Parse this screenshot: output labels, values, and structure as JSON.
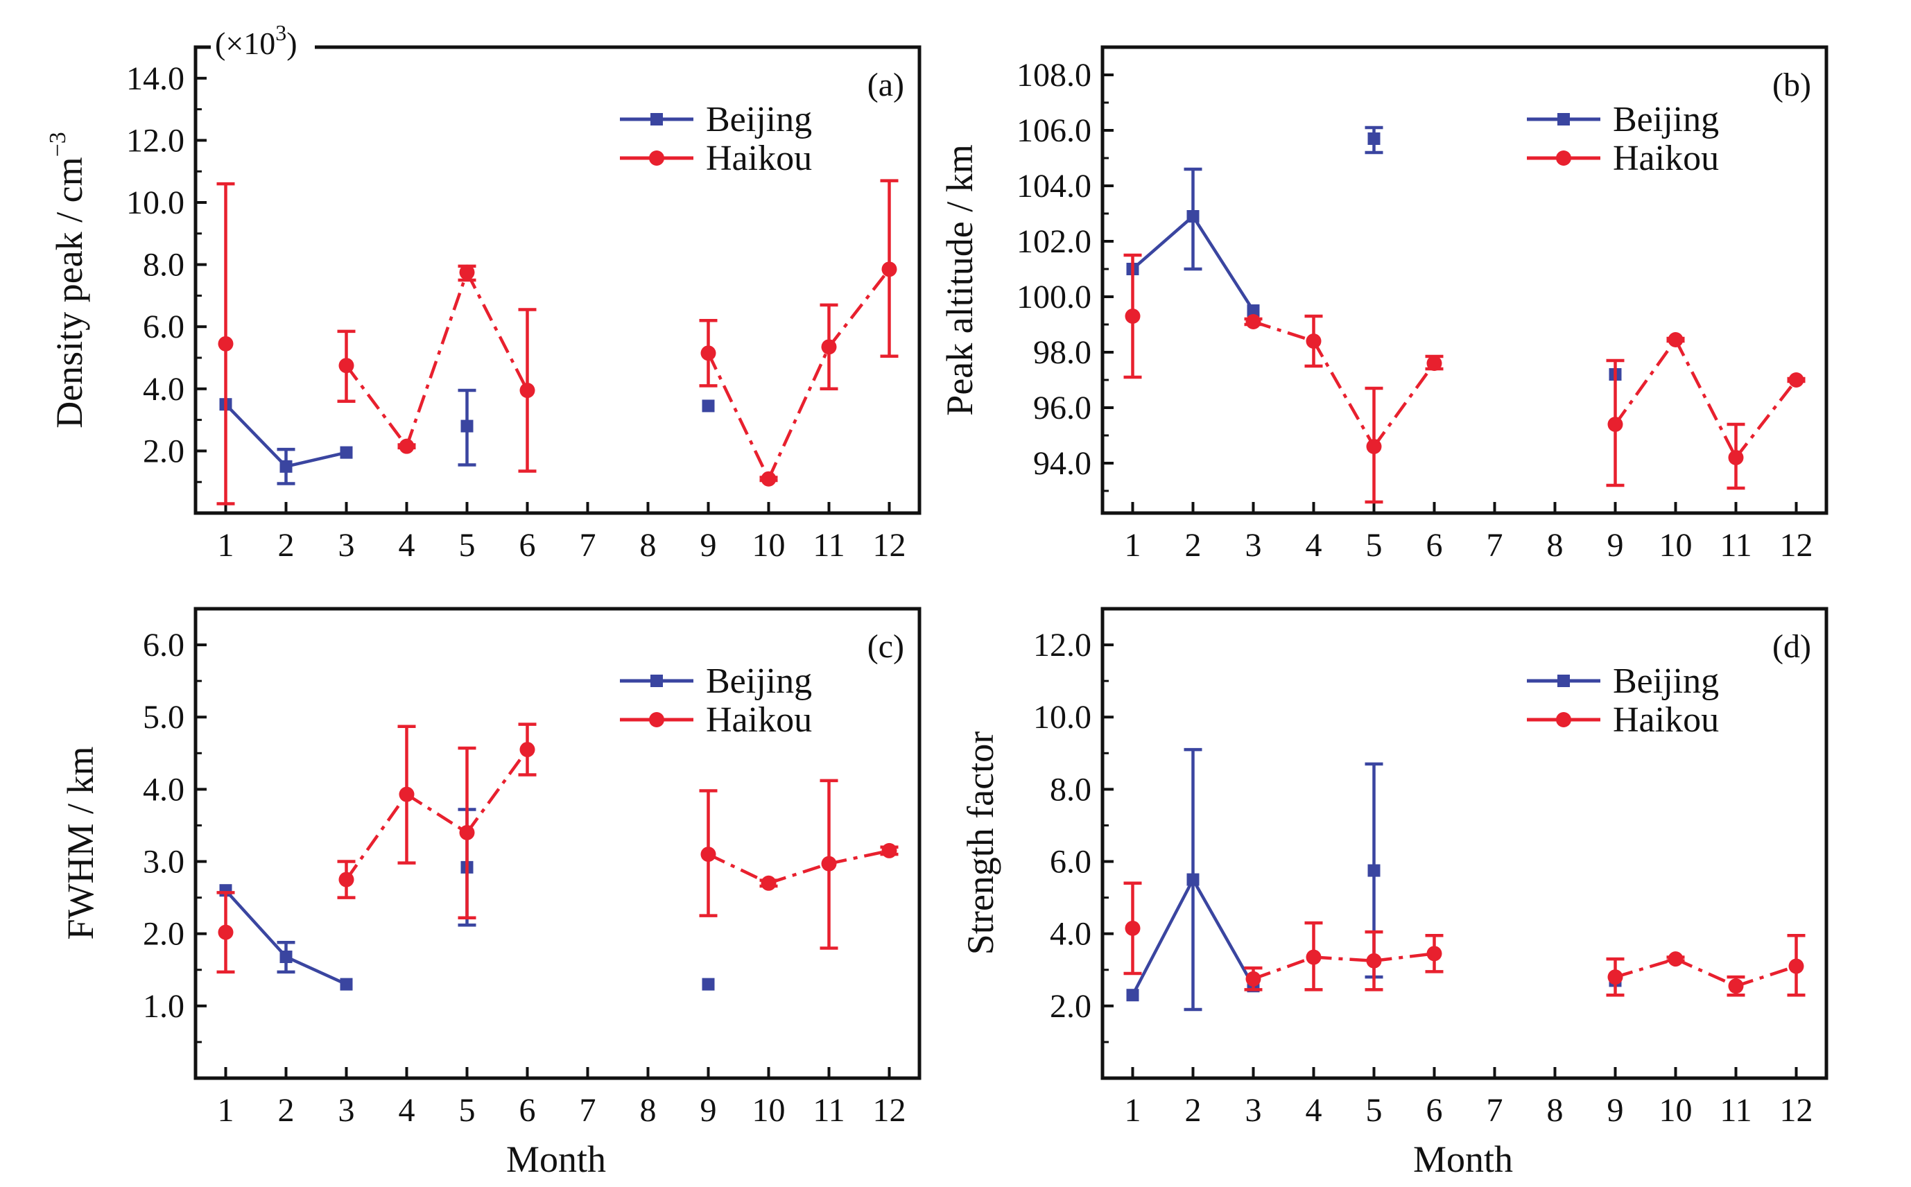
{
  "figure": {
    "x_title": "Month",
    "colors": {
      "beijing": "#3a45a0",
      "haikou": "#e8202e"
    }
  },
  "chart_data": [
    {
      "type": "line",
      "panel_label": "(a)",
      "ylabel": "Density peak / cm",
      "ylabel_sup": "−3",
      "y_multiplier": {
        "base": "(×10",
        "exp": "3",
        "close": ")"
      },
      "ylim": [
        0,
        15
      ],
      "yticks": [
        2,
        4,
        6,
        8,
        10,
        12,
        14
      ],
      "ytick_labels": [
        "2.0",
        "4.0",
        "6.0",
        "8.0",
        "10.0",
        "12.0",
        "14.0"
      ],
      "xticks": [
        1,
        2,
        3,
        4,
        5,
        6,
        7,
        8,
        9,
        10,
        11,
        12
      ],
      "xlim": [
        0.5,
        12.5
      ],
      "legend": "top-right",
      "series": [
        {
          "name": "Beijing",
          "marker": "square",
          "line": "solid",
          "points": [
            {
              "x": 1,
              "y": 3.5,
              "lo": 3.5,
              "hi": 3.5
            },
            {
              "x": 2,
              "y": 1.5,
              "lo": 0.95,
              "hi": 2.05
            },
            {
              "x": 3,
              "y": 1.95,
              "lo": 1.95,
              "hi": 1.95
            },
            {
              "x": 5,
              "y": 2.8,
              "lo": 1.55,
              "hi": 3.95
            },
            {
              "x": 9,
              "y": 3.45,
              "lo": 3.45,
              "hi": 3.45
            }
          ]
        },
        {
          "name": "Haikou",
          "marker": "circle",
          "line": "dashdot",
          "points": [
            {
              "x": 1,
              "y": 5.45,
              "lo": 0.3,
              "hi": 10.6
            },
            {
              "x": 3,
              "y": 4.75,
              "lo": 3.6,
              "hi": 5.85
            },
            {
              "x": 4,
              "y": 2.15,
              "lo": 2.1,
              "hi": 2.2
            },
            {
              "x": 5,
              "y": 7.75,
              "lo": 7.5,
              "hi": 7.95
            },
            {
              "x": 6,
              "y": 3.95,
              "lo": 1.35,
              "hi": 6.55
            },
            {
              "x": 9,
              "y": 5.15,
              "lo": 4.1,
              "hi": 6.2
            },
            {
              "x": 10,
              "y": 1.1,
              "lo": 1.05,
              "hi": 1.15
            },
            {
              "x": 11,
              "y": 5.35,
              "lo": 4.0,
              "hi": 6.7
            },
            {
              "x": 12,
              "y": 7.85,
              "lo": 5.05,
              "hi": 10.7
            }
          ]
        }
      ]
    },
    {
      "type": "line",
      "panel_label": "(b)",
      "ylabel": "Peak altitude / km",
      "ylim": [
        92.2,
        109.0
      ],
      "yticks": [
        94,
        96,
        98,
        100,
        102,
        104,
        106,
        108
      ],
      "ytick_labels": [
        "94.0",
        "96.0",
        "98.0",
        "100.0",
        "102.0",
        "104.0",
        "106.0",
        "108.0"
      ],
      "xticks": [
        1,
        2,
        3,
        4,
        5,
        6,
        7,
        8,
        9,
        10,
        11,
        12
      ],
      "xlim": [
        0.5,
        12.5
      ],
      "legend": "top-right",
      "series": [
        {
          "name": "Beijing",
          "marker": "square",
          "line": "solid",
          "points": [
            {
              "x": 1,
              "y": 101.0,
              "lo": 101.0,
              "hi": 101.0
            },
            {
              "x": 2,
              "y": 102.9,
              "lo": 101.0,
              "hi": 104.6
            },
            {
              "x": 3,
              "y": 99.5,
              "lo": 99.5,
              "hi": 99.5
            },
            {
              "x": 5,
              "y": 105.7,
              "lo": 105.2,
              "hi": 106.1
            },
            {
              "x": 9,
              "y": 97.2,
              "lo": 97.2,
              "hi": 97.2
            }
          ]
        },
        {
          "name": "Haikou",
          "marker": "circle",
          "line": "dashdot",
          "points": [
            {
              "x": 1,
              "y": 99.3,
              "lo": 97.1,
              "hi": 101.5
            },
            {
              "x": 3,
              "y": 99.1,
              "lo": 99.0,
              "hi": 99.2
            },
            {
              "x": 4,
              "y": 98.4,
              "lo": 97.5,
              "hi": 99.3
            },
            {
              "x": 5,
              "y": 94.6,
              "lo": 92.6,
              "hi": 96.7
            },
            {
              "x": 6,
              "y": 97.6,
              "lo": 97.4,
              "hi": 97.85
            },
            {
              "x": 9,
              "y": 95.4,
              "lo": 93.2,
              "hi": 97.7
            },
            {
              "x": 10,
              "y": 98.45,
              "lo": 98.4,
              "hi": 98.5
            },
            {
              "x": 11,
              "y": 94.2,
              "lo": 93.1,
              "hi": 95.4
            },
            {
              "x": 12,
              "y": 97.0,
              "lo": 96.95,
              "hi": 97.05
            }
          ]
        }
      ]
    },
    {
      "type": "line",
      "panel_label": "(c)",
      "ylabel": "FWHM / km",
      "ylim": [
        0,
        6.5
      ],
      "yticks": [
        1,
        2,
        3,
        4,
        5,
        6
      ],
      "ytick_labels": [
        "1.0",
        "2.0",
        "3.0",
        "4.0",
        "5.0",
        "6.0"
      ],
      "xticks": [
        1,
        2,
        3,
        4,
        5,
        6,
        7,
        8,
        9,
        10,
        11,
        12
      ],
      "xlim": [
        0.5,
        12.5
      ],
      "legend": "top-right",
      "series": [
        {
          "name": "Beijing",
          "marker": "square",
          "line": "solid",
          "points": [
            {
              "x": 1,
              "y": 2.6,
              "lo": 2.6,
              "hi": 2.6
            },
            {
              "x": 2,
              "y": 1.68,
              "lo": 1.47,
              "hi": 1.88
            },
            {
              "x": 3,
              "y": 1.3,
              "lo": 1.3,
              "hi": 1.3
            },
            {
              "x": 5,
              "y": 2.92,
              "lo": 2.12,
              "hi": 3.72
            },
            {
              "x": 9,
              "y": 1.3,
              "lo": 1.3,
              "hi": 1.3
            }
          ]
        },
        {
          "name": "Haikou",
          "marker": "circle",
          "line": "dashdot",
          "points": [
            {
              "x": 1,
              "y": 2.02,
              "lo": 1.47,
              "hi": 2.57
            },
            {
              "x": 3,
              "y": 2.75,
              "lo": 2.5,
              "hi": 3.0
            },
            {
              "x": 4,
              "y": 3.93,
              "lo": 2.98,
              "hi": 4.87
            },
            {
              "x": 5,
              "y": 3.4,
              "lo": 2.22,
              "hi": 4.57
            },
            {
              "x": 6,
              "y": 4.55,
              "lo": 4.2,
              "hi": 4.9
            },
            {
              "x": 9,
              "y": 3.1,
              "lo": 2.25,
              "hi": 3.98
            },
            {
              "x": 10,
              "y": 2.7,
              "lo": 2.66,
              "hi": 2.74
            },
            {
              "x": 11,
              "y": 2.97,
              "lo": 1.8,
              "hi": 4.12
            },
            {
              "x": 12,
              "y": 3.15,
              "lo": 3.1,
              "hi": 3.2
            }
          ]
        }
      ]
    },
    {
      "type": "line",
      "panel_label": "(d)",
      "ylabel": "Strength factor",
      "ylim": [
        0,
        13
      ],
      "yticks": [
        2,
        4,
        6,
        8,
        10,
        12
      ],
      "ytick_labels": [
        "2.0",
        "4.0",
        "6.0",
        "8.0",
        "10.0",
        "12.0"
      ],
      "xticks": [
        1,
        2,
        3,
        4,
        5,
        6,
        7,
        8,
        9,
        10,
        11,
        12
      ],
      "xlim": [
        0.5,
        12.5
      ],
      "legend": "top-right",
      "series": [
        {
          "name": "Beijing",
          "marker": "square",
          "line": "solid",
          "points": [
            {
              "x": 1,
              "y": 2.3,
              "lo": 2.3,
              "hi": 2.3
            },
            {
              "x": 2,
              "y": 5.5,
              "lo": 1.9,
              "hi": 9.1
            },
            {
              "x": 3,
              "y": 2.55,
              "lo": 2.55,
              "hi": 2.55
            },
            {
              "x": 5,
              "y": 5.75,
              "lo": 2.8,
              "hi": 8.7
            },
            {
              "x": 9,
              "y": 2.7,
              "lo": 2.7,
              "hi": 2.7
            }
          ]
        },
        {
          "name": "Haikou",
          "marker": "circle",
          "line": "dashdot",
          "points": [
            {
              "x": 1,
              "y": 4.15,
              "lo": 2.9,
              "hi": 5.4
            },
            {
              "x": 3,
              "y": 2.75,
              "lo": 2.45,
              "hi": 3.05
            },
            {
              "x": 4,
              "y": 3.35,
              "lo": 2.45,
              "hi": 4.3
            },
            {
              "x": 5,
              "y": 3.25,
              "lo": 2.45,
              "hi": 4.05
            },
            {
              "x": 6,
              "y": 3.45,
              "lo": 2.95,
              "hi": 3.95
            },
            {
              "x": 9,
              "y": 2.8,
              "lo": 2.3,
              "hi": 3.3
            },
            {
              "x": 10,
              "y": 3.3,
              "lo": 3.25,
              "hi": 3.35
            },
            {
              "x": 11,
              "y": 2.55,
              "lo": 2.3,
              "hi": 2.8
            },
            {
              "x": 12,
              "y": 3.1,
              "lo": 2.3,
              "hi": 3.95
            }
          ]
        }
      ]
    }
  ]
}
